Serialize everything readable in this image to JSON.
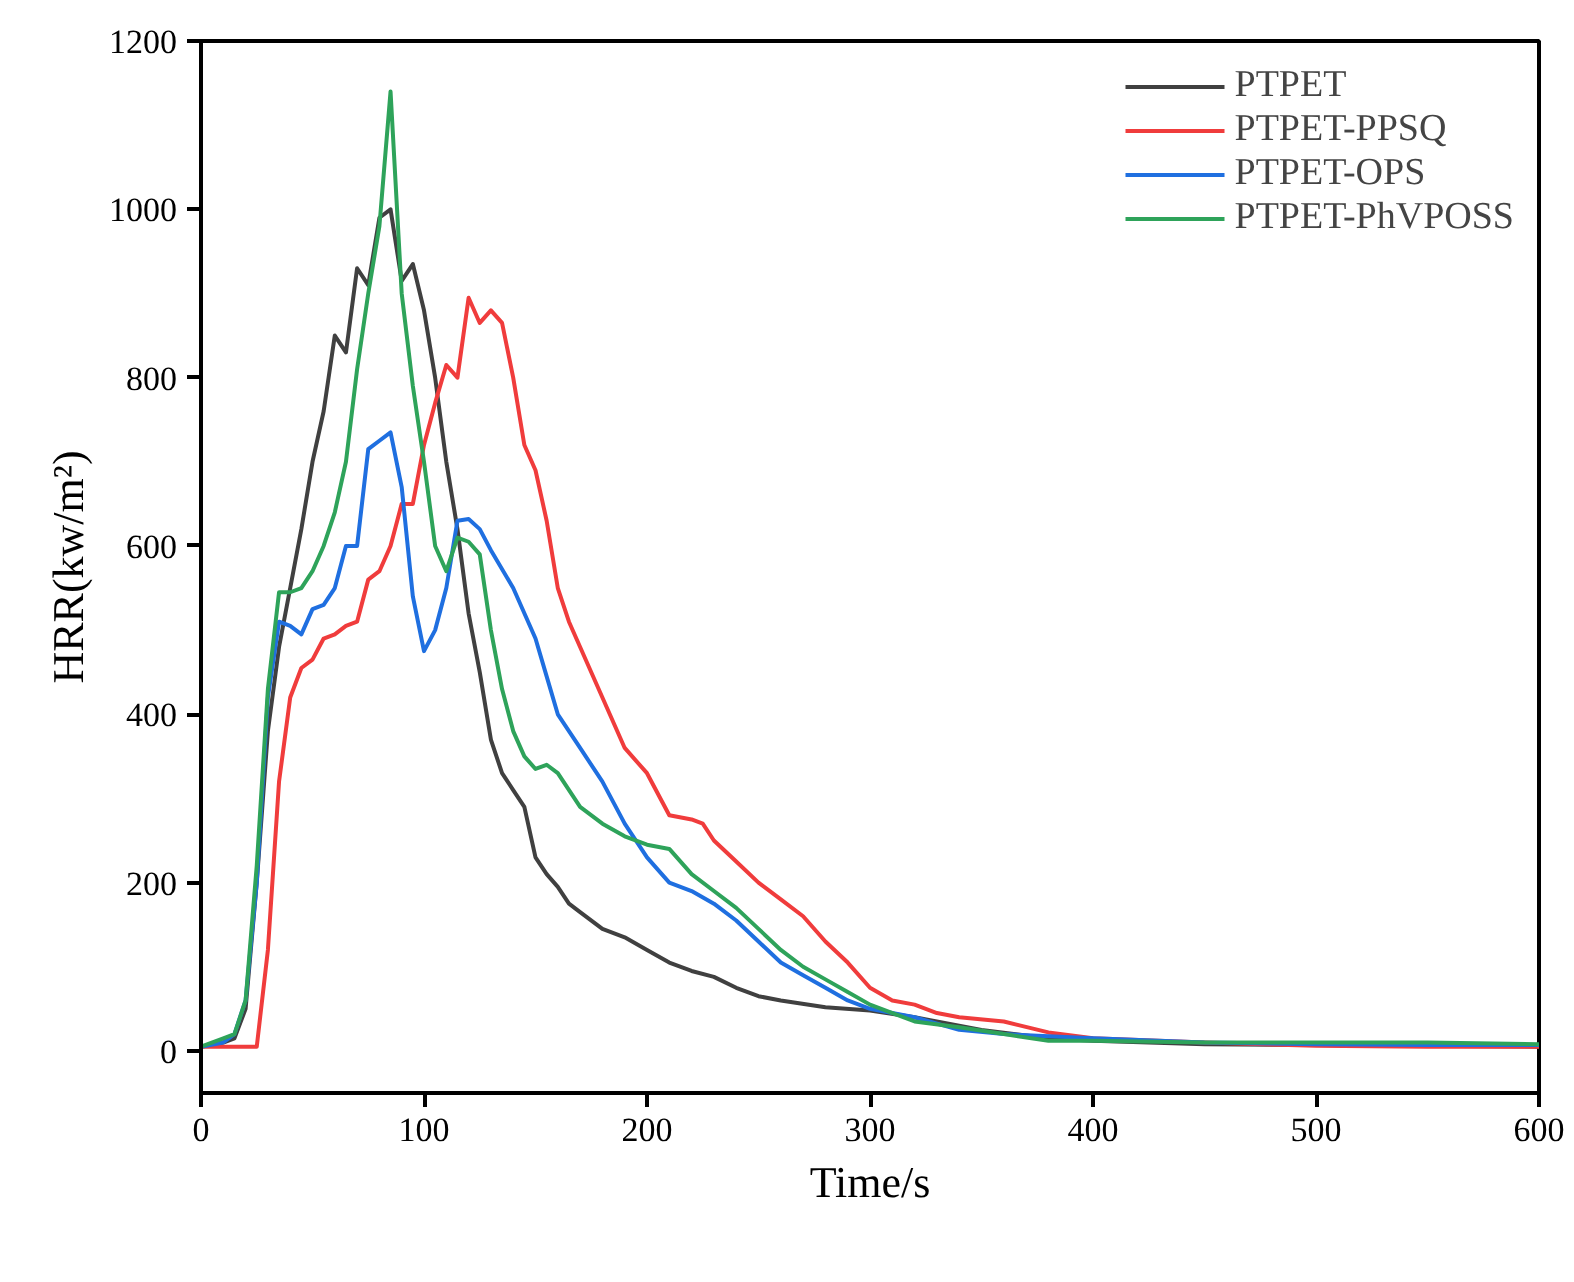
{
  "chart_data": {
    "type": "line",
    "xlabel": "Time/s",
    "ylabel": "HRR(kw/m²)",
    "xlim": [
      0,
      600
    ],
    "ylim": [
      -50,
      1200
    ],
    "xticks": [
      0,
      100,
      200,
      300,
      400,
      500,
      600
    ],
    "yticks": [
      0,
      200,
      400,
      600,
      800,
      1000,
      1200
    ],
    "grid": false,
    "legend": "top right",
    "line_style": "solid",
    "marker": "none",
    "series": [
      {
        "name": "PTPET",
        "color": "#404040",
        "x": [
          0,
          10,
          15,
          20,
          25,
          30,
          35,
          40,
          45,
          50,
          55,
          60,
          65,
          70,
          75,
          80,
          85,
          90,
          95,
          100,
          105,
          110,
          115,
          120,
          125,
          130,
          135,
          140,
          145,
          150,
          155,
          160,
          165,
          170,
          180,
          190,
          200,
          210,
          220,
          230,
          240,
          250,
          260,
          280,
          300,
          320,
          350,
          380,
          400,
          450,
          500,
          550,
          600
        ],
        "values": [
          5,
          10,
          15,
          50,
          200,
          380,
          480,
          550,
          620,
          700,
          760,
          850,
          830,
          930,
          910,
          990,
          1000,
          915,
          935,
          880,
          800,
          700,
          620,
          520,
          450,
          370,
          330,
          310,
          290,
          230,
          210,
          195,
          175,
          165,
          145,
          135,
          120,
          105,
          95,
          88,
          75,
          65,
          60,
          52,
          48,
          40,
          25,
          15,
          12,
          8,
          7,
          6,
          5
        ]
      },
      {
        "name": "PTPET-PPSQ",
        "color": "#f03c3c",
        "x": [
          0,
          10,
          20,
          25,
          30,
          35,
          40,
          45,
          50,
          55,
          60,
          65,
          70,
          75,
          80,
          85,
          90,
          95,
          100,
          105,
          110,
          115,
          120,
          125,
          130,
          135,
          140,
          145,
          150,
          155,
          160,
          165,
          170,
          180,
          190,
          200,
          210,
          220,
          225,
          230,
          240,
          250,
          260,
          270,
          280,
          290,
          300,
          310,
          320,
          330,
          340,
          360,
          380,
          400,
          450,
          500,
          550,
          600
        ],
        "values": [
          5,
          5,
          5,
          5,
          120,
          320,
          420,
          455,
          465,
          490,
          495,
          505,
          510,
          560,
          570,
          600,
          650,
          650,
          720,
          770,
          815,
          800,
          895,
          865,
          880,
          865,
          800,
          720,
          690,
          630,
          550,
          510,
          480,
          420,
          360,
          330,
          280,
          275,
          270,
          250,
          225,
          200,
          180,
          160,
          130,
          105,
          75,
          60,
          55,
          45,
          40,
          35,
          22,
          15,
          10,
          6,
          5,
          5
        ]
      },
      {
        "name": "PTPET-OPS",
        "color": "#1f6fe0",
        "x": [
          0,
          10,
          15,
          20,
          25,
          30,
          35,
          40,
          45,
          50,
          55,
          60,
          65,
          70,
          75,
          80,
          85,
          90,
          95,
          100,
          105,
          110,
          115,
          120,
          125,
          130,
          140,
          150,
          155,
          160,
          170,
          180,
          190,
          200,
          210,
          220,
          230,
          240,
          250,
          260,
          270,
          280,
          290,
          300,
          320,
          340,
          360,
          400,
          450,
          500,
          550,
          600
        ],
        "values": [
          5,
          10,
          20,
          60,
          200,
          420,
          510,
          505,
          495,
          525,
          530,
          550,
          600,
          600,
          715,
          725,
          735,
          670,
          540,
          475,
          500,
          550,
          630,
          632,
          620,
          595,
          550,
          490,
          445,
          400,
          360,
          320,
          270,
          230,
          200,
          190,
          175,
          155,
          130,
          105,
          90,
          75,
          60,
          50,
          40,
          25,
          20,
          15,
          10,
          8,
          7,
          7
        ]
      },
      {
        "name": "PTPET-PhVPOSS",
        "color": "#2ea35a",
        "x": [
          0,
          10,
          15,
          20,
          25,
          30,
          35,
          40,
          45,
          50,
          55,
          60,
          65,
          70,
          75,
          80,
          85,
          90,
          95,
          100,
          105,
          110,
          115,
          120,
          125,
          130,
          135,
          140,
          145,
          150,
          155,
          160,
          170,
          180,
          190,
          200,
          210,
          220,
          230,
          240,
          250,
          260,
          270,
          280,
          290,
          300,
          320,
          340,
          360,
          380,
          400,
          450,
          500,
          550,
          600
        ],
        "values": [
          5,
          15,
          20,
          60,
          220,
          430,
          545,
          545,
          550,
          570,
          600,
          640,
          700,
          810,
          900,
          980,
          1140,
          900,
          790,
          700,
          600,
          570,
          610,
          605,
          590,
          500,
          430,
          380,
          350,
          335,
          340,
          330,
          290,
          270,
          255,
          245,
          240,
          210,
          190,
          170,
          145,
          120,
          100,
          85,
          70,
          55,
          35,
          28,
          20,
          12,
          12,
          10,
          10,
          10,
          8
        ]
      }
    ]
  }
}
